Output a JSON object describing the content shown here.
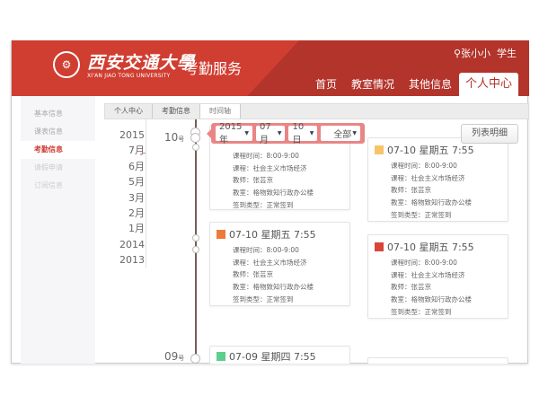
{
  "header": {
    "logo_text": "西安交通大學",
    "logo_en": "XI'AN JIAO TONG UNIVERSITY",
    "service": "考勤服务",
    "user_name": "张小小",
    "user_role": "学生",
    "nav": [
      {
        "label": "首页"
      },
      {
        "label": "教室情况"
      },
      {
        "label": "其他信息"
      },
      {
        "label": "个人中心",
        "active": true
      }
    ]
  },
  "sidebar": {
    "items": [
      {
        "label": "基本信息"
      },
      {
        "label": "课表信息"
      },
      {
        "label": "考勤信息",
        "active": true
      },
      {
        "label": "请假申请"
      },
      {
        "label": "订阅信息"
      }
    ]
  },
  "breadcrumb": [
    "个人中心",
    "考勤信息",
    "时间轴"
  ],
  "years": [
    "2015",
    "7月",
    "6月",
    "5月",
    "3月",
    "2月",
    "1月",
    "2014",
    "2013"
  ],
  "days": [
    {
      "num": "10",
      "unit": "号"
    },
    {
      "num": "09",
      "unit": "号"
    }
  ],
  "filter": {
    "year": "2015年",
    "month": "07月",
    "day": "10日",
    "type": "全部"
  },
  "list_button": "列表明细",
  "colors": {
    "header": "#b3342b",
    "accent": "#cc3a30",
    "filter": "#ea8585"
  },
  "cards": [
    {
      "title": "07-10 星期五 7:55",
      "icon_color": "#f0a070",
      "rows": [
        "课程时间：8:00-9:00",
        "课程：社会主义市场经济",
        "教师：张芸京",
        "教室：格物致知行政办公楼",
        "签到类型：正常签到"
      ]
    },
    {
      "title": "07-10 星期五 7:55",
      "icon_color": "#f7c46a",
      "rows": [
        "课程时间：8:00-9:00",
        "课程：社会主义市场经济",
        "教师：张芸京",
        "教室：格物致知行政办公楼",
        "签到类型：正常签到"
      ]
    },
    {
      "title": "07-10 星期五 7:55",
      "icon_color": "#ee7a3a",
      "rows": [
        "课程时间：8:00-9:00",
        "课程：社会主义市场经济",
        "教师：张芸京",
        "教室：格物致知行政办公楼",
        "签到类型：正常签到"
      ]
    },
    {
      "title": "07-10 星期五 7:55",
      "icon_color": "#d9453b",
      "rows": [
        "课程时间：8:00-9:00",
        "课程：社会主义市场经济",
        "教师：张芸京",
        "教室：格物致知行政办公楼",
        "签到类型：正常签到"
      ]
    },
    {
      "title": "07-09 星期四 7:55",
      "icon_color": "#5ccf8f",
      "rows": []
    }
  ]
}
